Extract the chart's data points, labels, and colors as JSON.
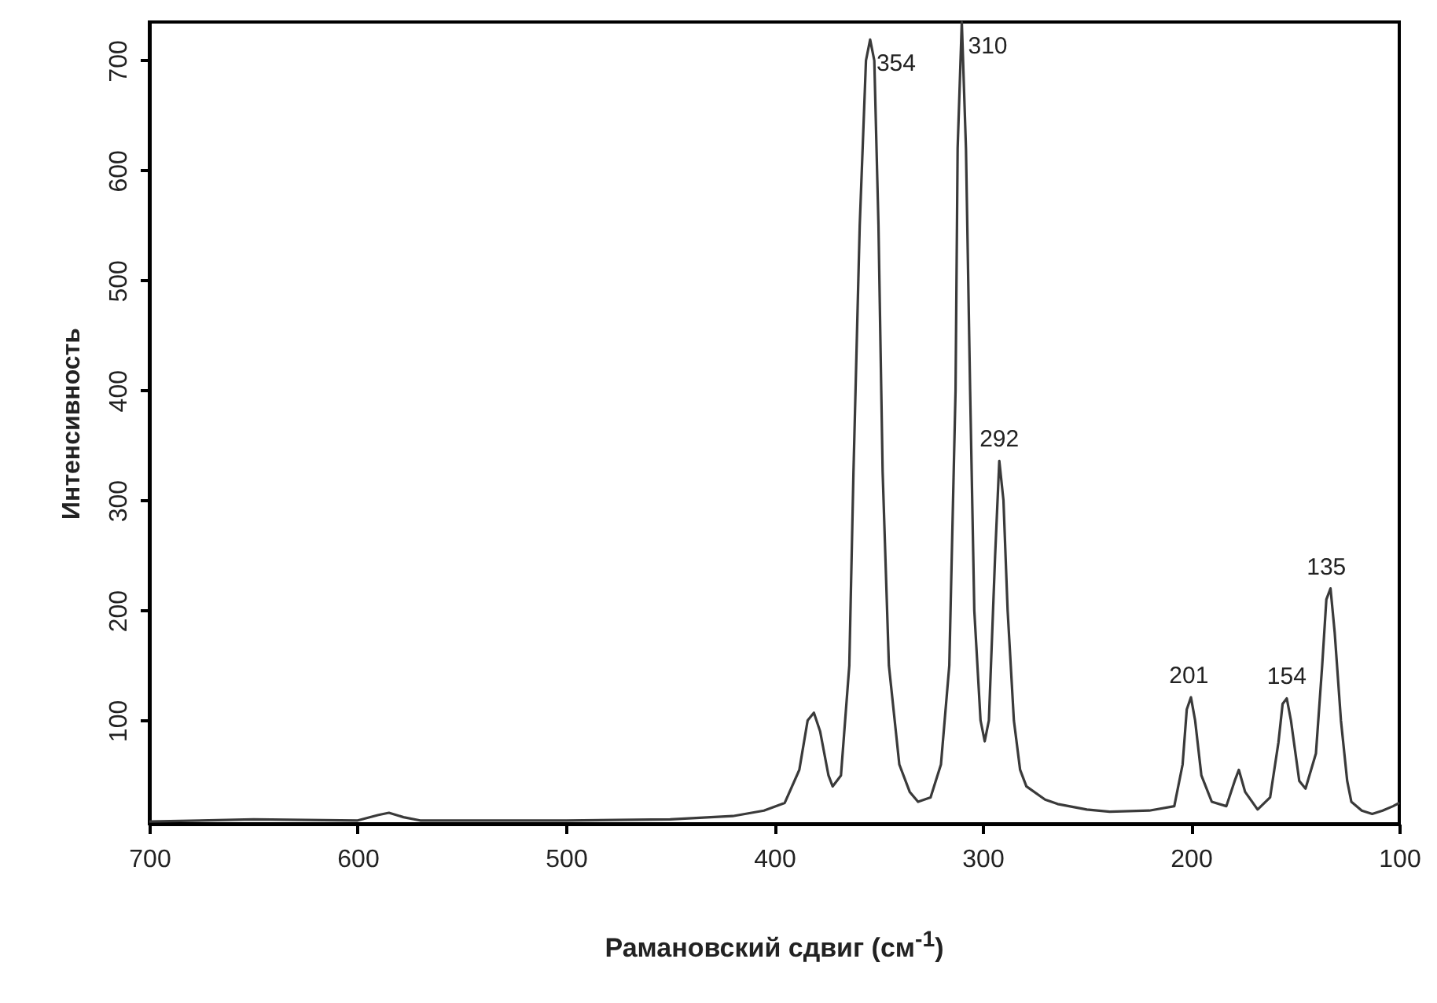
{
  "chart_data": {
    "type": "line",
    "xlabel": "Рамановский сдвиг (см$^{-1}$)",
    "ylabel": "Интенсивность",
    "xlim": [
      700,
      100
    ],
    "xticks": [
      700,
      600,
      500,
      400,
      300,
      200,
      100
    ],
    "ylim": [
      6,
      735
    ],
    "yticks": [
      100,
      200,
      300,
      400,
      500,
      600,
      700
    ],
    "grid": false,
    "marker": "none",
    "line_style": "solid",
    "series": [
      {
        "color": "#3a3a3a",
        "x": [
          700,
          650,
          600,
          590,
          585,
          578,
          570,
          500,
          450,
          420,
          405,
          395,
          388,
          384,
          381,
          378,
          374,
          372,
          368,
          364,
          362,
          359,
          356,
          354,
          352,
          350,
          348,
          345,
          340,
          335,
          331,
          325,
          320,
          316,
          313,
          312,
          310,
          308,
          306,
          304,
          301,
          299,
          297,
          294,
          292,
          290,
          288,
          285,
          282,
          279,
          270,
          264,
          250,
          239,
          220,
          208,
          204,
          202,
          200,
          198,
          195,
          190,
          183,
          179,
          177,
          174,
          168,
          162,
          158,
          156,
          154,
          152,
          148,
          145,
          140,
          137,
          135,
          133,
          131,
          128,
          125,
          123,
          118,
          113,
          108,
          103,
          100
        ],
        "values": [
          8,
          10,
          9,
          14,
          16,
          12,
          9,
          9,
          10,
          13,
          18,
          25,
          55,
          100,
          107,
          90,
          50,
          40,
          50,
          150,
          326,
          550,
          700,
          719,
          700,
          550,
          326,
          150,
          60,
          35,
          26,
          30,
          60,
          150,
          400,
          620,
          735,
          620,
          400,
          200,
          100,
          81,
          100,
          250,
          336,
          300,
          200,
          100,
          55,
          40,
          28,
          24,
          19,
          17,
          18,
          22,
          60,
          110,
          121,
          100,
          50,
          26,
          22,
          45,
          55,
          35,
          19,
          30,
          80,
          115,
          120,
          100,
          45,
          38,
          70,
          150,
          210,
          220,
          180,
          100,
          45,
          26,
          18,
          15,
          18,
          22,
          25
        ]
      }
    ],
    "annotations": [
      {
        "text": "354",
        "x": 354,
        "y": 719
      },
      {
        "text": "310",
        "x": 310,
        "y": 735
      },
      {
        "text": "292",
        "x": 292,
        "y": 336
      },
      {
        "text": "201",
        "x": 201,
        "y": 121
      },
      {
        "text": "154",
        "x": 154,
        "y": 120
      },
      {
        "text": "135",
        "x": 135,
        "y": 220
      }
    ]
  }
}
